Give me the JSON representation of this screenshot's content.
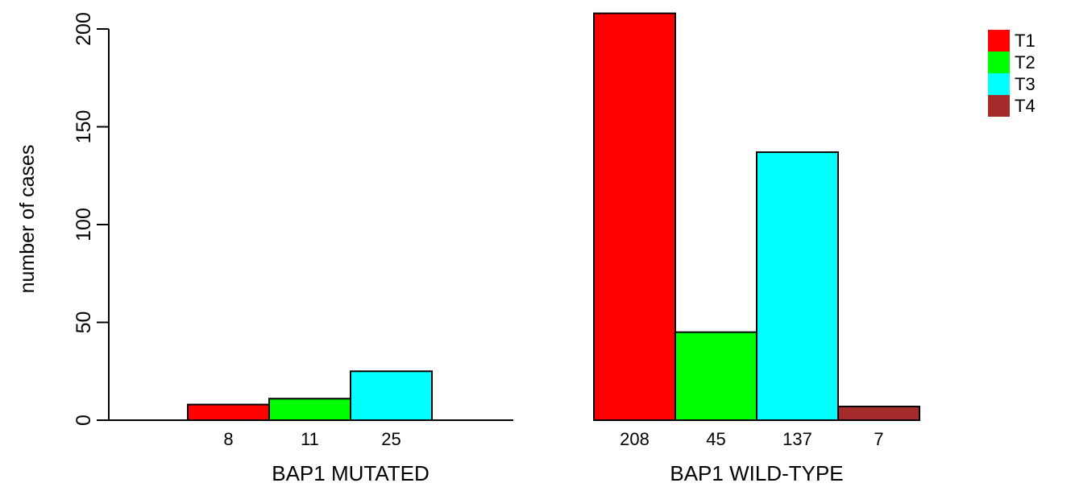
{
  "chart_data": {
    "type": "bar",
    "ylabel": "number of cases",
    "ylim": [
      0,
      200
    ],
    "yticks": [
      0,
      50,
      100,
      150,
      200
    ],
    "groups": [
      {
        "label": "BAP1 MUTATED",
        "bar_labels": [
          "8",
          "11",
          "25",
          ""
        ],
        "values": [
          8,
          11,
          25,
          0
        ]
      },
      {
        "label": "BAP1 WILD-TYPE",
        "bar_labels": [
          "208",
          "45",
          "137",
          "7"
        ],
        "values": [
          208,
          45,
          137,
          7
        ]
      }
    ],
    "series": [
      {
        "name": "T1",
        "color": "#ff0000"
      },
      {
        "name": "T2",
        "color": "#00ff00"
      },
      {
        "name": "T3",
        "color": "#00ffff"
      },
      {
        "name": "T4",
        "color": "#a52a2a"
      }
    ],
    "legend_position": "top-right",
    "grid": false
  }
}
